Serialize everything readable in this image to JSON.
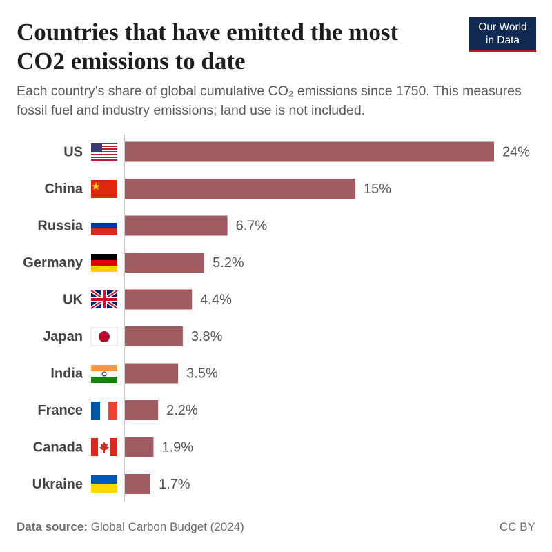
{
  "chart_data": {
    "type": "bar",
    "title": "Countries that have emitted the most CO2 emissions to date",
    "subtitle": "Each country's share of global cumulative CO₂ emissions since 1750. This measures fossil fuel and industry emissions; land use is not included.",
    "categories": [
      "US",
      "China",
      "Russia",
      "Germany",
      "UK",
      "Japan",
      "India",
      "France",
      "Canada",
      "Ukraine"
    ],
    "values": [
      24,
      15,
      6.7,
      5.2,
      4.4,
      3.8,
      3.5,
      2.2,
      1.9,
      1.7
    ],
    "value_labels": [
      "24%",
      "15%",
      "6.7%",
      "5.2%",
      "4.4%",
      "3.8%",
      "3.5%",
      "2.2%",
      "1.9%",
      "1.7%"
    ],
    "color": "#a05c61"
  },
  "logo": [
    "Our World",
    "in Data"
  ],
  "footer": {
    "source_label": "Data source:",
    "source": "Global Carbon Budget (2024)",
    "license": "CC BY"
  }
}
